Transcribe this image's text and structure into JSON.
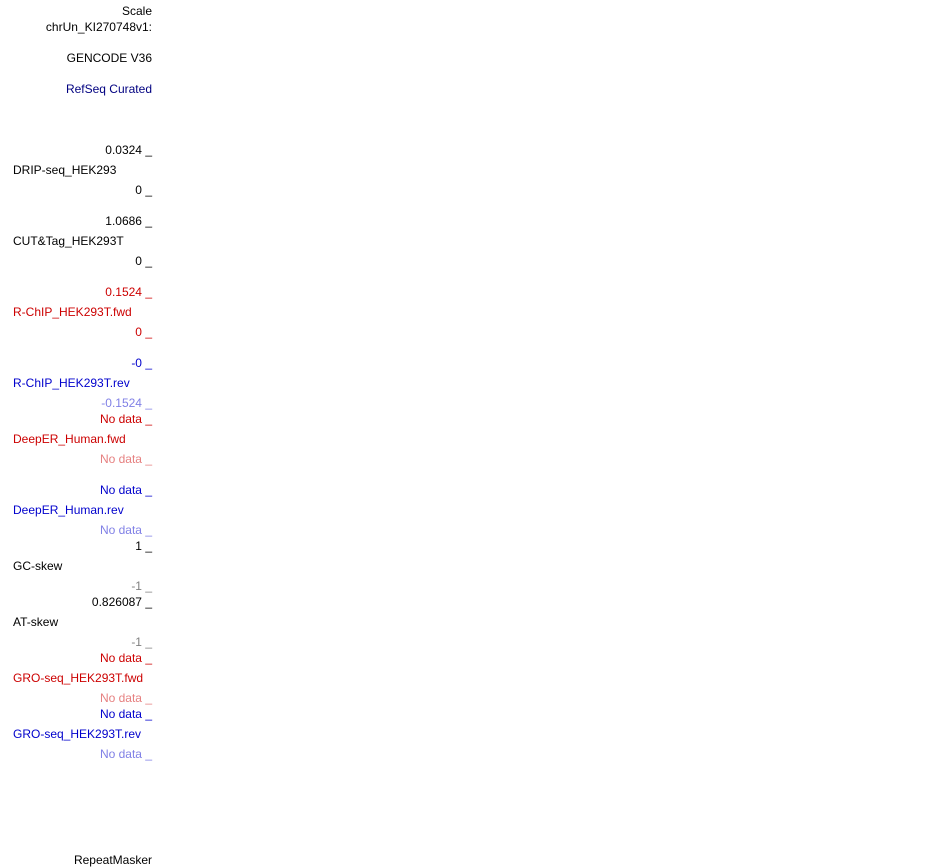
{
  "colors": {
    "black": "#000000",
    "navy": "#000080",
    "red": "#cc0000",
    "blue": "#0000cc",
    "light_red": "#e68080",
    "light_blue": "#8080e6",
    "gray": "#808080"
  },
  "header": {
    "scale": "Scale",
    "chrom": "chrUn_KI270748v1:"
  },
  "tracks": {
    "gencode": "GENCODE V36",
    "refseq": "RefSeq Curated",
    "drip": {
      "name": "DRIP-seq_HEK293",
      "max": "0.0324",
      "min": "0"
    },
    "cuttag": {
      "name": "CUT&Tag_HEK293T",
      "max": "1.0686",
      "min": "0"
    },
    "rchip_fwd": {
      "name": "R-ChIP_HEK293T.fwd",
      "max": "0.1524",
      "min": "0"
    },
    "rchip_rev": {
      "name": "R-ChIP_HEK293T.rev",
      "max": "-0",
      "min": "-0.1524"
    },
    "deeper_fwd": {
      "name": "DeepER_Human.fwd",
      "max": "No data",
      "min": "No data"
    },
    "deeper_rev": {
      "name": "DeepER_Human.rev",
      "max": "No data",
      "min": "No data"
    },
    "gc_skew": {
      "name": "GC-skew",
      "max": "1",
      "min": "-1"
    },
    "at_skew": {
      "name": "AT-skew",
      "max": "0.826087",
      "min": "-1"
    },
    "gro_fwd": {
      "name": "GRO-seq_HEK293T.fwd",
      "max": "No data",
      "min": "No data"
    },
    "gro_rev": {
      "name": "GRO-seq_HEK293T.rev",
      "max": "No data",
      "min": "No data"
    },
    "repeatmasker": "RepeatMasker"
  }
}
